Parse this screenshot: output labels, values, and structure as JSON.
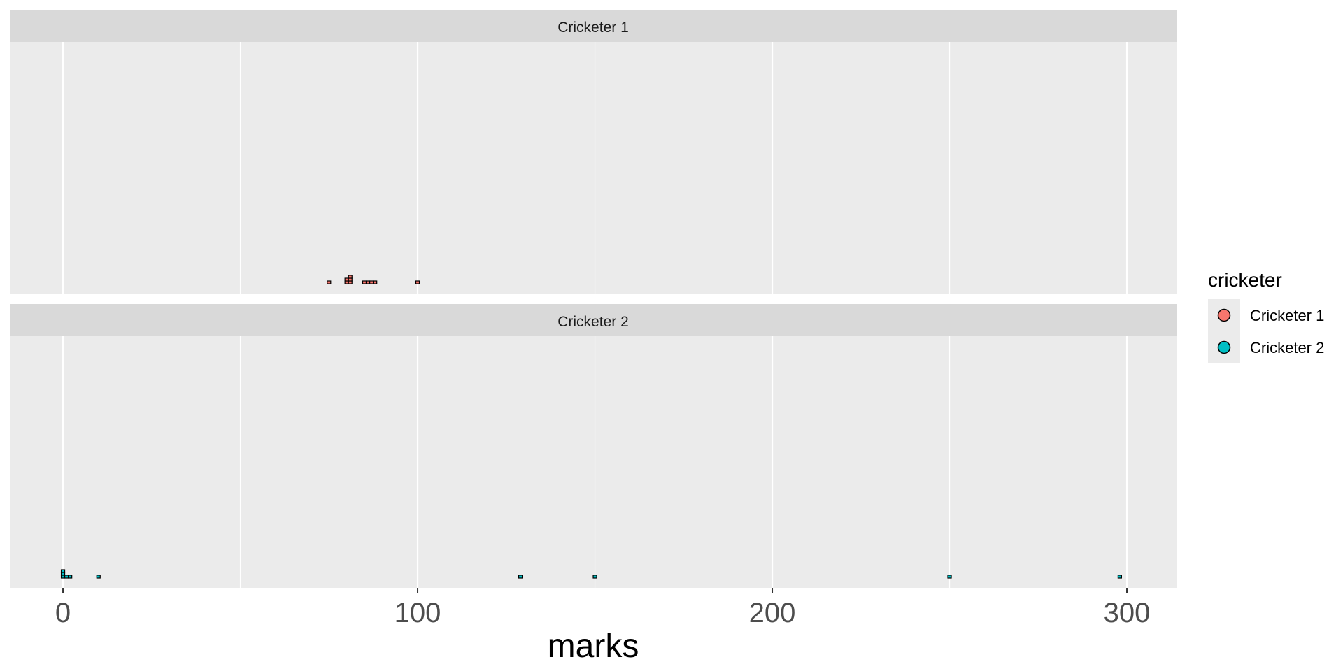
{
  "chart_data": {
    "type": "scatter",
    "xlabel": "marks",
    "xlim": [
      -15,
      314
    ],
    "x_ticks": [
      0,
      100,
      200,
      300
    ],
    "x_minor_ticks": [
      50,
      150,
      250
    ],
    "legend": {
      "title": "cricketer",
      "position": "right",
      "entries": [
        {
          "label": "Cricketer 1",
          "color": "#F8766D"
        },
        {
          "label": "Cricketer 2",
          "color": "#00BFC4"
        }
      ]
    },
    "panels": [
      {
        "strip": "Cricketer 1",
        "color": "#F8766D",
        "points": [
          {
            "x": 75,
            "stack": 0
          },
          {
            "x": 80,
            "stack": 0
          },
          {
            "x": 80,
            "stack": 1
          },
          {
            "x": 81,
            "stack": 0
          },
          {
            "x": 81,
            "stack": 1
          },
          {
            "x": 81,
            "stack": 2
          },
          {
            "x": 85,
            "stack": 0
          },
          {
            "x": 86,
            "stack": 0
          },
          {
            "x": 87,
            "stack": 0
          },
          {
            "x": 88,
            "stack": 0
          },
          {
            "x": 100,
            "stack": 0
          }
        ]
      },
      {
        "strip": "Cricketer 2",
        "color": "#00BFC4",
        "points": [
          {
            "x": 0,
            "stack": 0
          },
          {
            "x": 0,
            "stack": 1
          },
          {
            "x": 0,
            "stack": 2
          },
          {
            "x": 1,
            "stack": 0
          },
          {
            "x": 2,
            "stack": 0
          },
          {
            "x": 10,
            "stack": 0
          },
          {
            "x": 129,
            "stack": 0
          },
          {
            "x": 150,
            "stack": 0
          },
          {
            "x": 250,
            "stack": 0
          },
          {
            "x": 298,
            "stack": 0
          }
        ]
      }
    ]
  },
  "colors": {
    "panel_background": "#EBEBEB",
    "strip_background": "#D9D9D9",
    "grid": "#FFFFFF"
  }
}
